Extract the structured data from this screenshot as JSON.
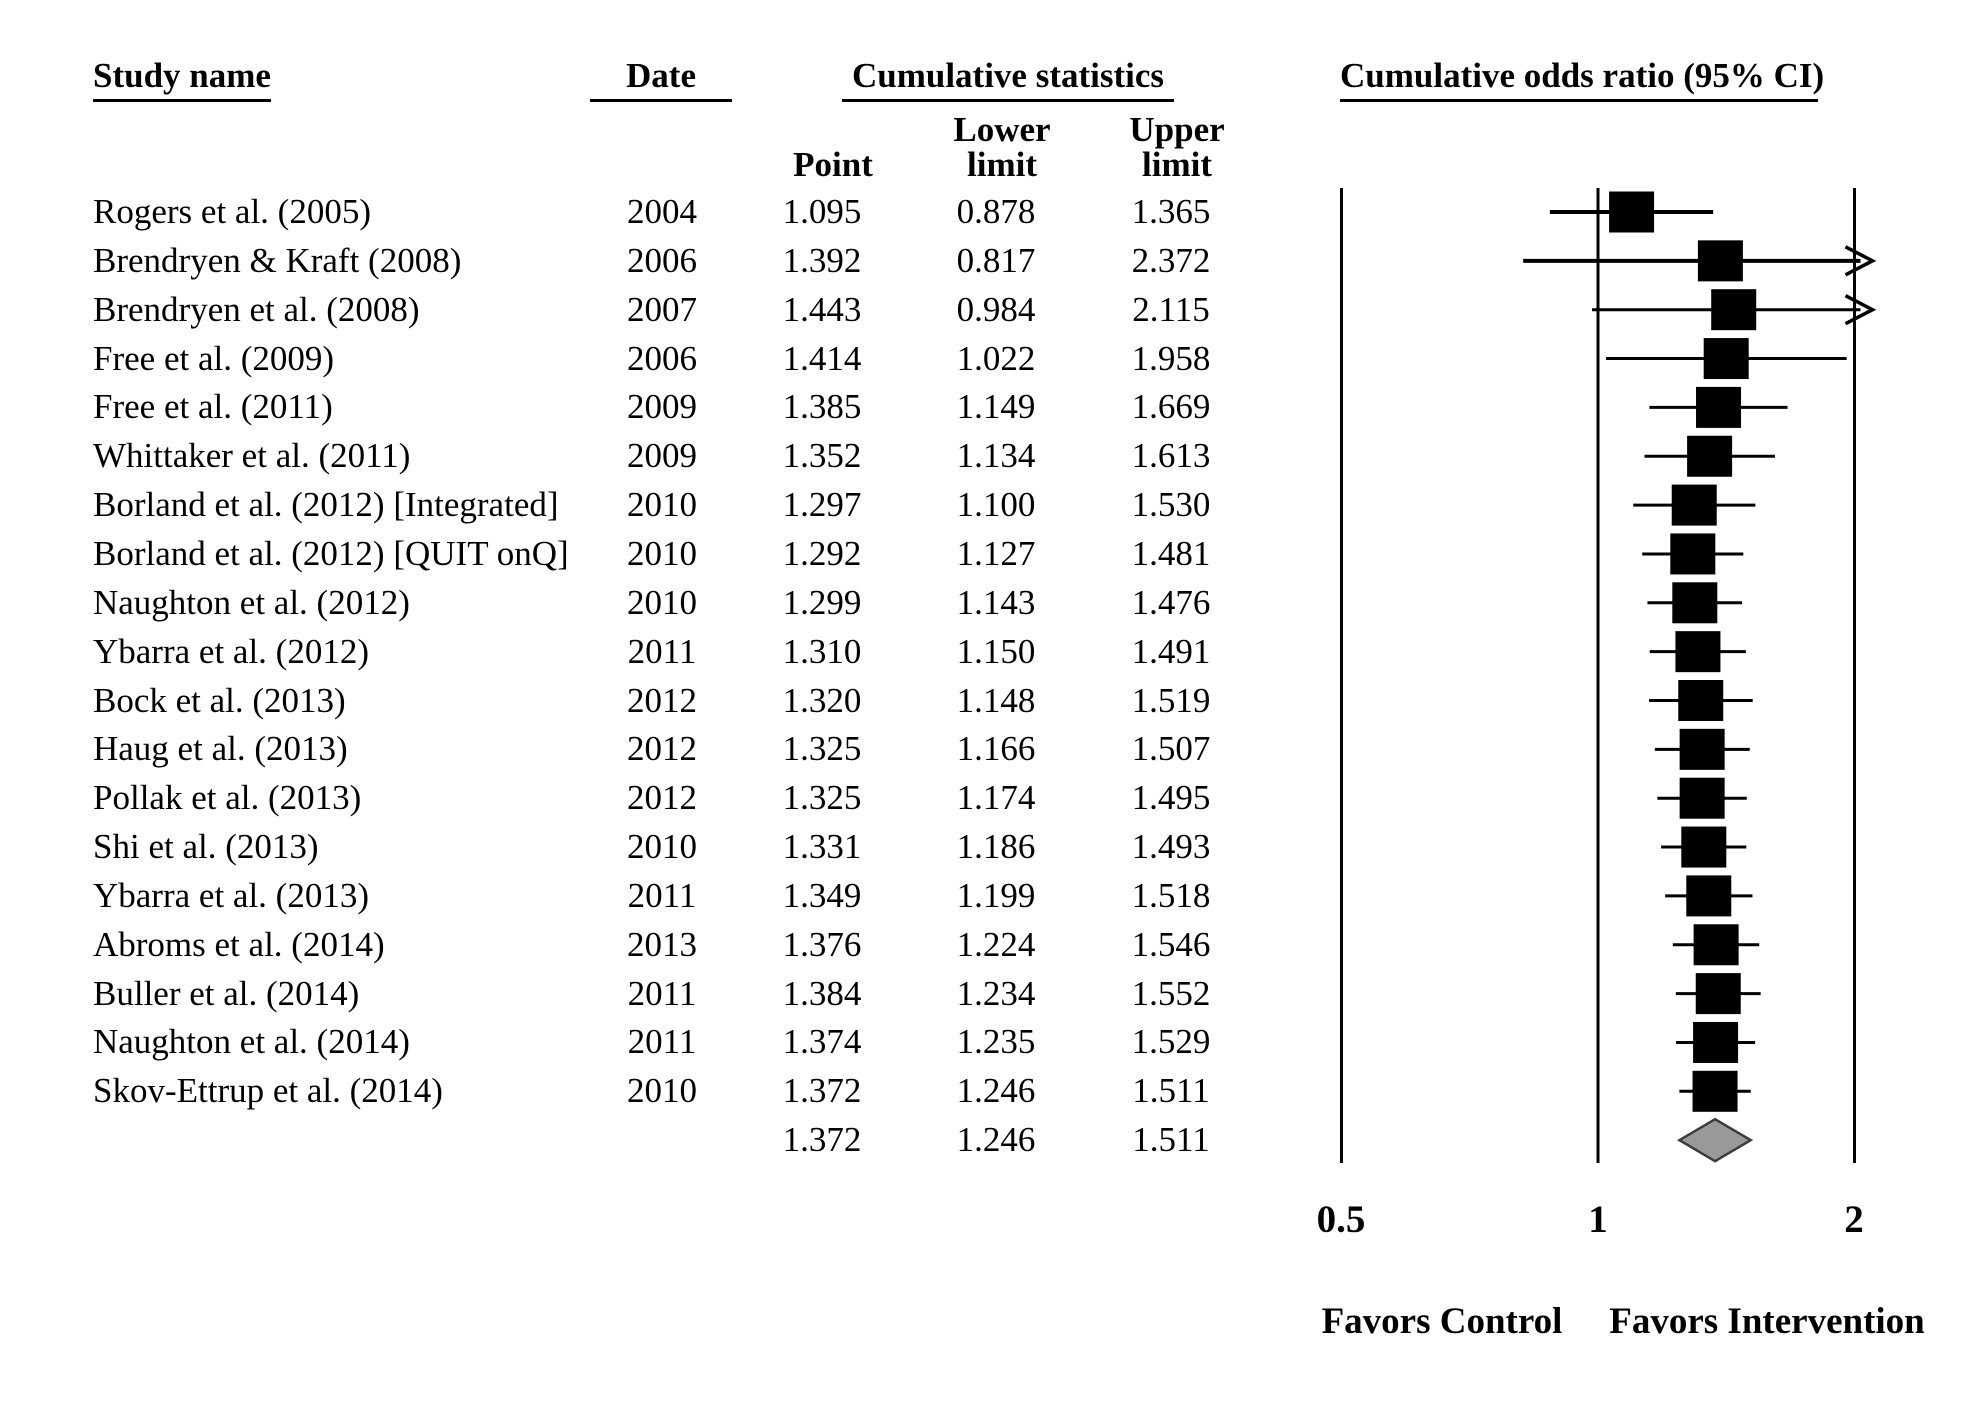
{
  "table": {
    "headers": {
      "study": "Study name",
      "date": "Date",
      "stats_group": "Cumulative statistics",
      "point": "Point",
      "lower1": "Lower",
      "lower2": "limit",
      "upper1": "Upper",
      "upper2": "limit",
      "plot_group": "Cumulative odds ratio (95% CI)"
    }
  },
  "chart_data": {
    "type": "forest",
    "x_scale": "log",
    "xlim": [
      0.5,
      2
    ],
    "x_ticks": [
      0.5,
      1,
      2
    ],
    "x_tick_labels": [
      "0.5",
      "1",
      "2"
    ],
    "footer_left": "Favors Control",
    "footer_right": "Favors Intervention",
    "marker_color": "#000000",
    "line_color": "#000000",
    "diamond_fill": "#999999",
    "diamond_stroke": "#3c3c3c",
    "clipped_note": "upper limits beyond 2 drawn as right arrows",
    "studies": [
      {
        "name": "Rogers et al. (2005)",
        "date": "2004",
        "point": 1.095,
        "lower": 0.878,
        "upper": 1.365
      },
      {
        "name": "Brendryen & Kraft (2008)",
        "date": "2006",
        "point": 1.392,
        "lower": 0.817,
        "upper": 2.372
      },
      {
        "name": "Brendryen et al. (2008)",
        "date": "2007",
        "point": 1.443,
        "lower": 0.984,
        "upper": 2.115
      },
      {
        "name": "Free et al. (2009)",
        "date": "2006",
        "point": 1.414,
        "lower": 1.022,
        "upper": 1.958
      },
      {
        "name": "Free et al. (2011)",
        "date": "2009",
        "point": 1.385,
        "lower": 1.149,
        "upper": 1.669
      },
      {
        "name": "Whittaker et al. (2011)",
        "date": "2009",
        "point": 1.352,
        "lower": 1.134,
        "upper": 1.613
      },
      {
        "name": "Borland et al. (2012) [Integrated]",
        "date": "2010",
        "point": 1.297,
        "lower": 1.1,
        "upper": 1.53
      },
      {
        "name": "Borland et al. (2012) [QUIT onQ]",
        "date": "2010",
        "point": 1.292,
        "lower": 1.127,
        "upper": 1.481
      },
      {
        "name": "Naughton et al. (2012)",
        "date": "2010",
        "point": 1.299,
        "lower": 1.143,
        "upper": 1.476
      },
      {
        "name": "Ybarra et al. (2012)",
        "date": "2011",
        "point": 1.31,
        "lower": 1.15,
        "upper": 1.491
      },
      {
        "name": "Bock et al. (2013)",
        "date": "2012",
        "point": 1.32,
        "lower": 1.148,
        "upper": 1.519
      },
      {
        "name": "Haug et al. (2013)",
        "date": "2012",
        "point": 1.325,
        "lower": 1.166,
        "upper": 1.507
      },
      {
        "name": "Pollak et al. (2013)",
        "date": "2012",
        "point": 1.325,
        "lower": 1.174,
        "upper": 1.495
      },
      {
        "name": "Shi et al. (2013)",
        "date": "2010",
        "point": 1.331,
        "lower": 1.186,
        "upper": 1.493
      },
      {
        "name": "Ybarra et al. (2013)",
        "date": "2011",
        "point": 1.349,
        "lower": 1.199,
        "upper": 1.518
      },
      {
        "name": "Abroms et al. (2014)",
        "date": "2013",
        "point": 1.376,
        "lower": 1.224,
        "upper": 1.546
      },
      {
        "name": "Buller et al. (2014)",
        "date": "2011",
        "point": 1.384,
        "lower": 1.234,
        "upper": 1.552
      },
      {
        "name": "Naughton et al. (2014)",
        "date": "2011",
        "point": 1.374,
        "lower": 1.235,
        "upper": 1.529
      },
      {
        "name": "Skov-Ettrup et al. (2014)",
        "date": "2010",
        "point": 1.372,
        "lower": 1.246,
        "upper": 1.511
      }
    ],
    "summary": {
      "point": 1.372,
      "lower": 1.246,
      "upper": 1.511
    }
  }
}
